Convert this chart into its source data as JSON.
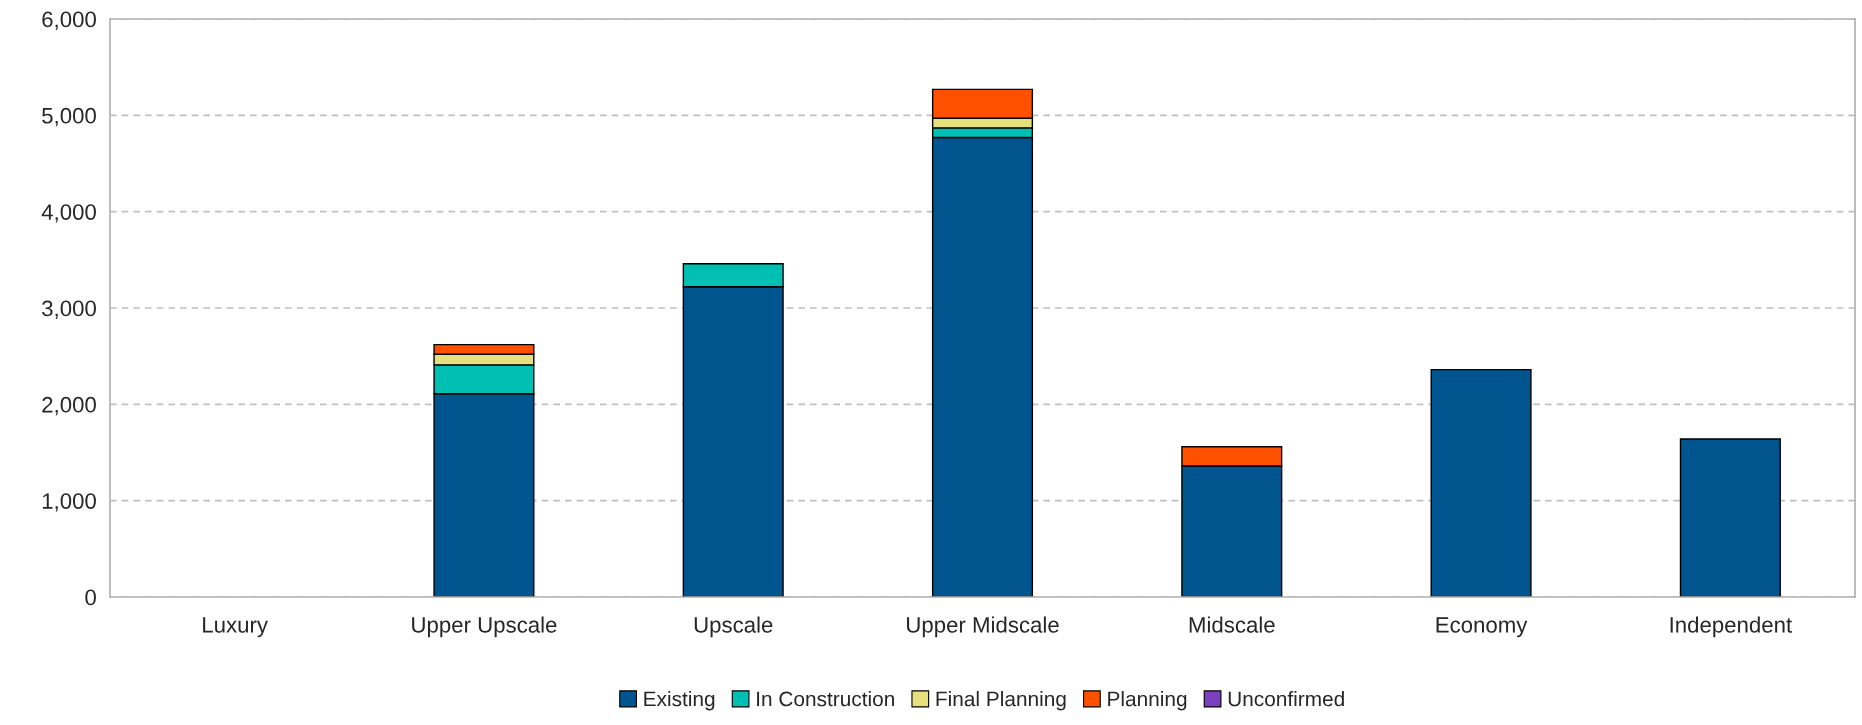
{
  "chart_data": {
    "type": "bar",
    "stacked": true,
    "categories": [
      "Luxury",
      "Upper Upscale",
      "Upscale",
      "Upper Midscale",
      "Midscale",
      "Economy",
      "Independent"
    ],
    "series": [
      {
        "name": "Existing",
        "color": "#00558f",
        "values": [
          0,
          2110,
          3220,
          4770,
          1360,
          2360,
          1640
        ]
      },
      {
        "name": "In Construction",
        "color": "#00bfb3",
        "values": [
          0,
          300,
          240,
          100,
          0,
          0,
          0
        ]
      },
      {
        "name": "Final Planning",
        "color": "#e8e07c",
        "values": [
          0,
          110,
          0,
          100,
          0,
          0,
          0
        ]
      },
      {
        "name": "Planning",
        "color": "#ff5000",
        "values": [
          0,
          100,
          0,
          300,
          200,
          0,
          0
        ]
      },
      {
        "name": "Unconfirmed",
        "color": "#7b3fbf",
        "values": [
          0,
          0,
          0,
          0,
          0,
          0,
          0
        ]
      }
    ],
    "ylim": [
      0,
      6000
    ],
    "yticks": [
      {
        "value": 0,
        "label": "0"
      },
      {
        "value": 1000,
        "label": "1,000"
      },
      {
        "value": 2000,
        "label": "2,000"
      },
      {
        "value": 3000,
        "label": "3,000"
      },
      {
        "value": 4000,
        "label": "4,000"
      },
      {
        "value": 5000,
        "label": "5,000"
      },
      {
        "value": 6000,
        "label": "6,000"
      }
    ],
    "grid": "y",
    "legend": "bottom"
  }
}
